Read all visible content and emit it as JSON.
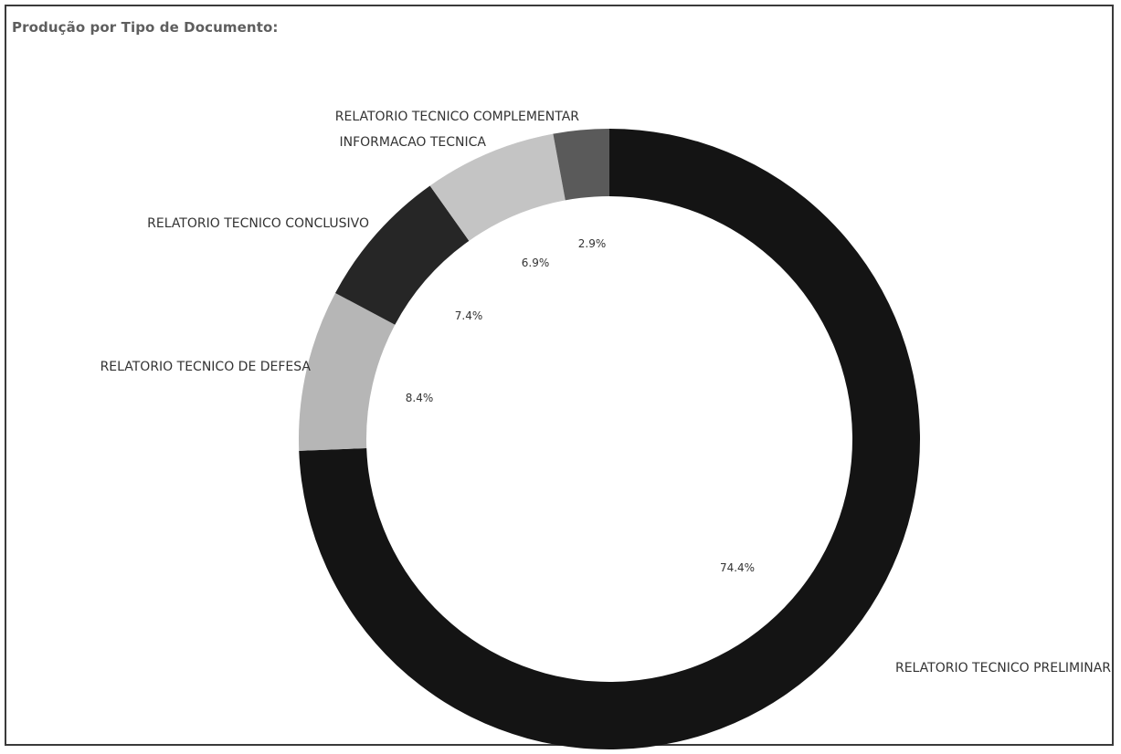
{
  "panel": {
    "title": "Produção por Tipo de Documento:"
  },
  "chart_data": {
    "type": "pie",
    "donut": true,
    "legend": "none",
    "labels": [
      "RELATORIO TECNICO PRELIMINAR",
      "RELATORIO TECNICO DE DEFESA",
      "RELATORIO TECNICO CONCLUSIVO",
      "INFORMACAO TECNICA",
      "RELATORIO TECNICO COMPLEMENTAR"
    ],
    "values": [
      74.4,
      8.4,
      7.4,
      6.9,
      2.9
    ],
    "value_labels": [
      "74.4%",
      "8.4%",
      "7.4%",
      "6.9%",
      "2.9%"
    ],
    "colors": [
      "#141414",
      "#b6b6b6",
      "#262626",
      "#c4c4c4",
      "#5a5a5a"
    ]
  }
}
